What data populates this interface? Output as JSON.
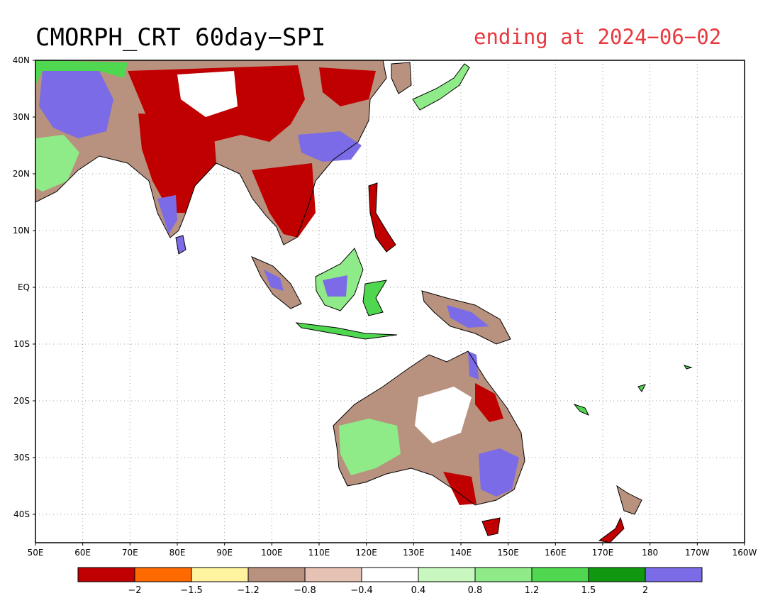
{
  "title": "CMORPH_CRT 60day−SPI",
  "subtitle": "ending at 2024−06−02",
  "colors": {
    "subtitle": "#e8383d",
    "land_outline": "#000000",
    "grid": "#9a9a9a"
  },
  "map": {
    "lon_labels": [
      "50E",
      "60E",
      "70E",
      "80E",
      "90E",
      "100E",
      "110E",
      "120E",
      "130E",
      "140E",
      "150E",
      "160E",
      "170E",
      "180",
      "170W",
      "160W"
    ],
    "lat_labels": [
      "40N",
      "30N",
      "20N",
      "10N",
      "EQ",
      "10S",
      "20S",
      "30S",
      "40S"
    ],
    "lon_range": [
      50,
      200
    ],
    "lat_range": [
      -45,
      40
    ],
    "gridlines": "dotted"
  },
  "colorbar": {
    "labels": [
      "−2",
      "−1.5",
      "−1.2",
      "−0.8",
      "−0.4",
      "0.4",
      "0.8",
      "1.2",
      "1.5",
      "2"
    ],
    "colors": [
      "#c00000",
      "#ff6a00",
      "#fff3a0",
      "#b8917f",
      "#e5c2b3",
      "#ffffff",
      "#c8f7c0",
      "#8fea88",
      "#4fd84f",
      "#109910",
      "#7b6be6"
    ]
  }
}
